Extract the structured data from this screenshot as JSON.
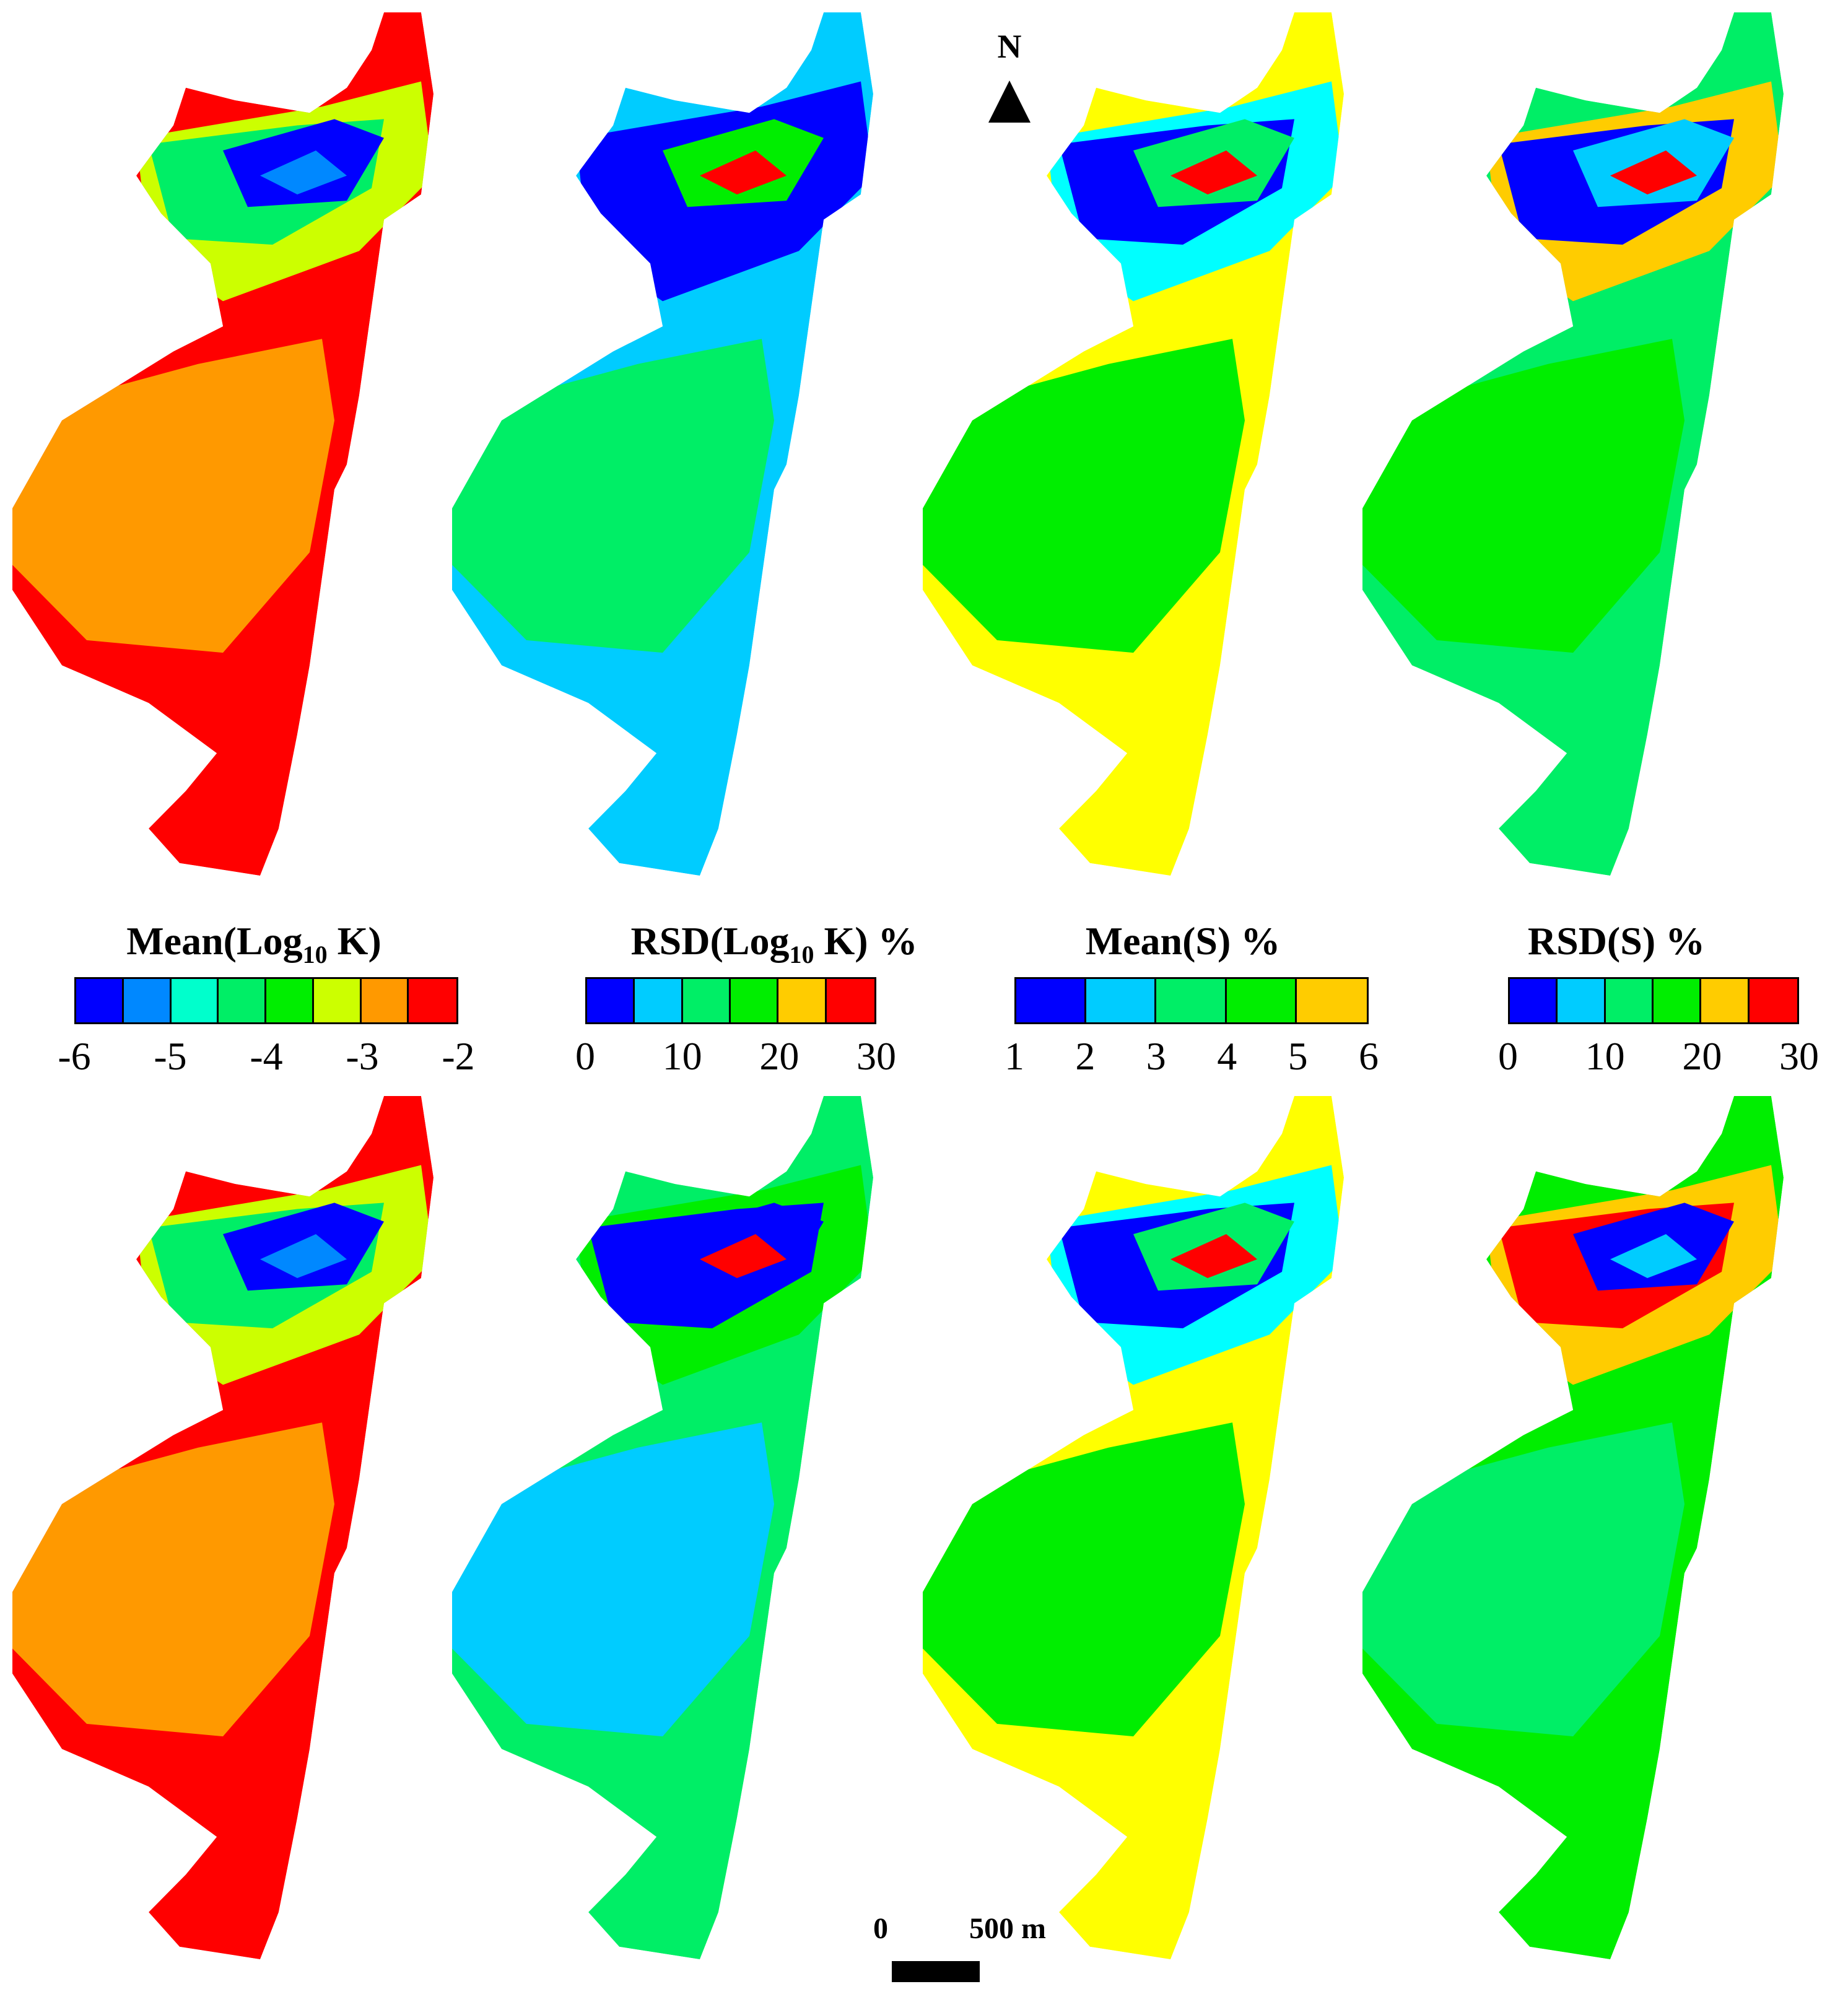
{
  "palette": {
    "mean_k": [
      "#0000ff",
      "#0088ff",
      "#00ffcc",
      "#00ee66",
      "#00ee00",
      "#ccff00",
      "#ff9900",
      "#ff0000"
    ],
    "rsd_k": [
      "#0000ff",
      "#00ccff",
      "#00ee66",
      "#00ee00",
      "#ffcc00",
      "#ff0000"
    ],
    "mean_s": [
      "#0000ff",
      "#00ccff",
      "#00ee66",
      "#00ee00",
      "#ffcc00"
    ],
    "rsd_s": [
      "#0000ff",
      "#00ccff",
      "#00ee66",
      "#00ee00",
      "#ffcc00",
      "#ff0000"
    ]
  },
  "legends": [
    {
      "title_prefix": "Mean(Log",
      "title_sub": "10",
      "title_bold": " K",
      "title_suffix": ")",
      "ticks": [
        "-6",
        "-5",
        "-4",
        "-3",
        "-2"
      ]
    },
    {
      "title_prefix": "RSD(Log",
      "title_sub": "10",
      "title_bold": " K",
      "title_suffix": ") %",
      "ticks": [
        "0",
        "10",
        "20",
        "30"
      ]
    },
    {
      "title_prefix": "Mean(",
      "title_sub": "",
      "title_bold": "S",
      "title_suffix": ") %",
      "ticks": [
        "1",
        "2",
        "3",
        "4",
        "5",
        "6"
      ]
    },
    {
      "title_prefix": "RSD(",
      "title_sub": "",
      "title_bold": "S",
      "title_suffix": ") %",
      "ticks": [
        "0",
        "10",
        "20",
        "30"
      ]
    }
  ],
  "north_arrow": {
    "label": "N"
  },
  "scale_bar": {
    "zero": "0",
    "distance": "500 m"
  },
  "maps": [
    {
      "row": 1,
      "variable": "Mean(Log10 K)",
      "background": "#ff0000",
      "zones": [
        "#ff9900",
        "#ccff00",
        "#00ee66",
        "#0000ff",
        "#0088ff"
      ]
    },
    {
      "row": 1,
      "variable": "RSD(Log10 K) %",
      "background": "#00ccff",
      "zones": [
        "#00ee66",
        "#0000ff",
        "#0000ff",
        "#00ee00",
        "#ff0000"
      ]
    },
    {
      "row": 1,
      "variable": "Mean(S) %",
      "background": "#ffff00",
      "zones": [
        "#00ee00",
        "#00ffff",
        "#0000ff",
        "#00ee66",
        "#ff0000"
      ]
    },
    {
      "row": 1,
      "variable": "RSD(S) %",
      "background": "#00ee66",
      "zones": [
        "#00ee00",
        "#ffcc00",
        "#0000ff",
        "#00ccff",
        "#ff0000"
      ]
    },
    {
      "row": 2,
      "variable": "Mean(Log10 K)",
      "background": "#ff0000",
      "zones": [
        "#ff9900",
        "#ccff00",
        "#00ee66",
        "#0000ff",
        "#0088ff"
      ]
    },
    {
      "row": 2,
      "variable": "RSD(Log10 K) %",
      "background": "#00ee66",
      "zones": [
        "#00ccff",
        "#00ee00",
        "#0000ff",
        "#0000ff",
        "#ff0000"
      ]
    },
    {
      "row": 2,
      "variable": "Mean(S) %",
      "background": "#ffff00",
      "zones": [
        "#00ee00",
        "#00ffff",
        "#0000ff",
        "#00ee66",
        "#ff0000"
      ]
    },
    {
      "row": 2,
      "variable": "RSD(S) %",
      "background": "#00ee00",
      "zones": [
        "#00ee66",
        "#ffcc00",
        "#ff0000",
        "#0000ff",
        "#00ccff"
      ]
    }
  ]
}
